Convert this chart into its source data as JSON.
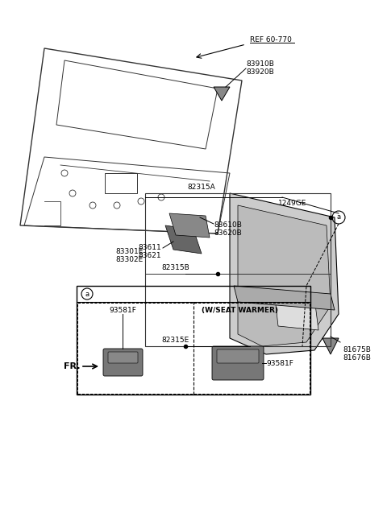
{
  "bg_color": "#ffffff",
  "fig_width": 4.8,
  "fig_height": 6.57,
  "dpi": 100,
  "labels": {
    "ref_60_770": "REF 60-770",
    "83910B_83920B": "83910B\n83920B",
    "82315A": "82315A",
    "1249GE": "1249GE",
    "circle_a": "a",
    "83610B_83620B": "83610B\n83620B",
    "83611_83621": "83611\n83621",
    "83301E_83302E": "83301E\n83302E",
    "82315B": "82315B",
    "82315E": "82315E",
    "81675B_81676B": "81675B\n81676B",
    "FR": "FR.",
    "93581F_left": "93581F",
    "93581F_right": "93581F",
    "w_seat_warmer": "(W/SEAT WARMER)",
    "circle_a2": "a"
  },
  "colors": {
    "black": "#000000",
    "gray": "#808080",
    "light_gray": "#aaaaaa",
    "dark_gray": "#555555",
    "mid_gray": "#999999",
    "part_gray": "#888888",
    "line_color": "#333333",
    "box_border": "#333333",
    "ref_underline": "#000000"
  }
}
